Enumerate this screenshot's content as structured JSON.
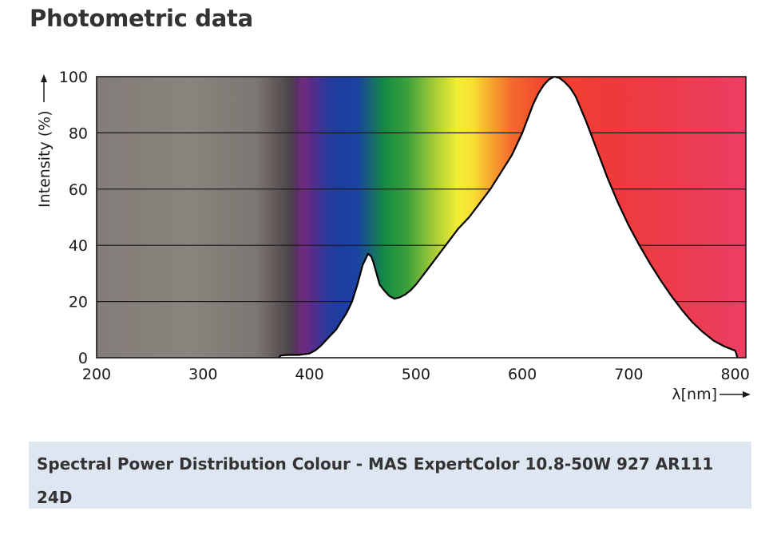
{
  "page": {
    "title": "Photometric data"
  },
  "caption": "Spectral Power Distribution Colour - MAS ExpertColor 10.8-50W 927 AR111 24D",
  "chart_data": {
    "type": "area",
    "title": "",
    "xlabel": "λ[nm]",
    "ylabel": "Intensity (%)",
    "xlim": [
      200,
      810
    ],
    "ylim": [
      0,
      100
    ],
    "xticks": [
      200,
      300,
      400,
      500,
      600,
      700,
      800
    ],
    "yticks": [
      0,
      20,
      40,
      60,
      80,
      100
    ],
    "grid": "horizontal",
    "background": "visible spectrum color gradient",
    "series": [
      {
        "x": [
          371,
          373,
          380,
          390,
          400,
          405,
          410,
          415,
          420,
          425,
          430,
          435,
          440,
          445,
          450,
          455,
          458,
          460,
          463,
          466,
          470,
          475,
          480,
          485,
          490,
          495,
          500,
          510,
          520,
          530,
          540,
          550,
          560,
          570,
          580,
          590,
          600,
          610,
          615,
          620,
          625,
          630,
          635,
          640,
          645,
          650,
          660,
          670,
          680,
          690,
          700,
          710,
          720,
          730,
          740,
          750,
          760,
          770,
          780,
          790,
          800,
          801,
          802
        ],
        "y": [
          0,
          0.8,
          1,
          1,
          1.5,
          2.5,
          4,
          6,
          8,
          10,
          13,
          16,
          20,
          26,
          33,
          37,
          36,
          34,
          30,
          26,
          24,
          22,
          21,
          21.5,
          22.5,
          24,
          26,
          31,
          36,
          41,
          46,
          50,
          55,
          60,
          66,
          72,
          80,
          90,
          94,
          97,
          99,
          100,
          99.5,
          98,
          96,
          93,
          84,
          74,
          64,
          55,
          47,
          40,
          33.5,
          27.5,
          22,
          17,
          12.5,
          9,
          6,
          4,
          2.5,
          1.5,
          0
        ]
      }
    ],
    "colors": {
      "grid": "#1a1a1a",
      "curve": "#000000",
      "fill": "#ffffff",
      "caption_bg": "#dde6f1"
    }
  }
}
